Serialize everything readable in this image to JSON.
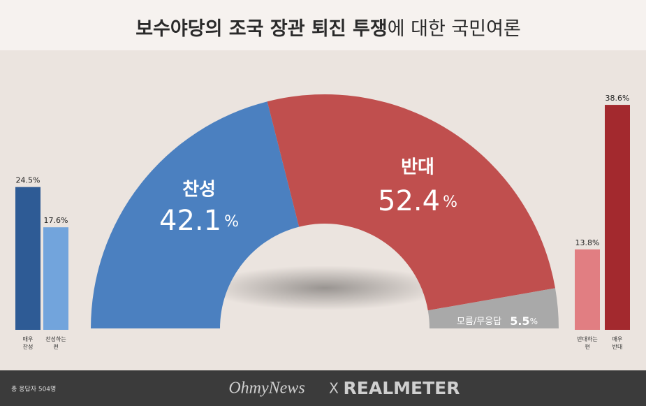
{
  "title_parts": [
    "보수야당의 조국 장관 퇴진 투쟁",
    "에 대한 국민여론"
  ],
  "chart_data": [
    {
      "type": "donut",
      "categories": [
        "찬성",
        "반대",
        "모름/무응답"
      ],
      "values": [
        42.1,
        52.4,
        5.5
      ],
      "value_unit": "%",
      "colors": [
        "#4b80c0",
        "#c04f4e",
        "#a9a9a9"
      ]
    },
    {
      "type": "bar",
      "categories": [
        "매우\n찬성",
        "찬성하는\n편"
      ],
      "values": [
        24.5,
        17.6
      ],
      "value_labels": [
        "24.5%",
        "17.6%"
      ],
      "colors": [
        "#2e5b95",
        "#72a4dc"
      ]
    },
    {
      "type": "bar",
      "categories": [
        "반대하는\n편",
        "매우\n반대"
      ],
      "values": [
        13.8,
        38.6
      ],
      "value_labels": [
        "13.8%",
        "38.6%"
      ],
      "colors": [
        "#e17e82",
        "#a3292e"
      ]
    }
  ],
  "footer": {
    "note": "총 응답자 504명",
    "brand1": "OhmyNews",
    "separator": "X",
    "brand2": "REALMETER"
  }
}
